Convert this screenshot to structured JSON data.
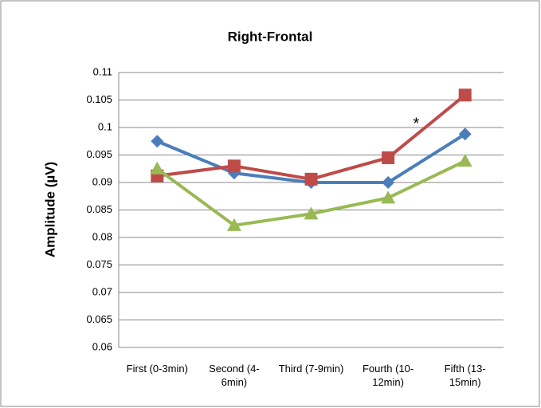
{
  "chart_data": {
    "type": "line",
    "title": "Right-Frontal",
    "y_label": "Amplitude (µV)",
    "categories": [
      "First (0-3min)",
      "Second (4-6min)",
      "Third (7-9min)",
      "Fourth (10-12min)",
      "Fifth (13-15min)"
    ],
    "series": [
      {
        "color": "#4a7ebb",
        "marker": "diamond",
        "values": [
          0.0975,
          0.0917,
          0.09,
          0.09,
          0.0988
        ]
      },
      {
        "color": "#be4b48",
        "marker": "square",
        "values": [
          0.0912,
          0.093,
          0.0906,
          0.0945,
          0.1059
        ]
      },
      {
        "color": "#98b954",
        "marker": "triangle",
        "values": [
          0.0925,
          0.0822,
          0.0843,
          0.0872,
          0.0939
        ]
      }
    ],
    "annotation": {
      "text": "*",
      "color": "#be4b48"
    },
    "ylim": [
      0.06,
      0.11
    ],
    "yticks": [
      0.06,
      0.065,
      0.07,
      0.075,
      0.08,
      0.085,
      0.09,
      0.095,
      0.1,
      0.105,
      0.11
    ],
    "grid": true
  }
}
